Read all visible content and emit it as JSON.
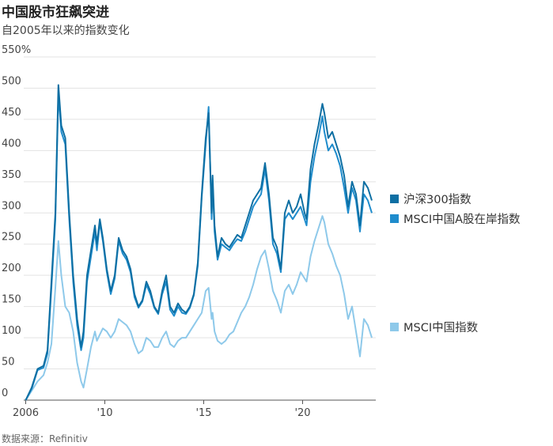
{
  "title": "中国股市狂飙突进",
  "subtitle": "自2005年以来的指数变化",
  "source": "数据来源：Refinitiv",
  "chart_data": {
    "type": "line",
    "title": "中国股市狂飙突进",
    "subtitle": "自2005年以来的指数变化",
    "xlabel": "",
    "ylabel": "",
    "xlim": [
      2005.9,
      2023.7
    ],
    "ylim": [
      0,
      550
    ],
    "y_ticks": [
      0,
      50,
      100,
      150,
      200,
      250,
      300,
      350,
      400,
      450,
      500,
      550
    ],
    "y_tick_labels": [
      "0",
      "50",
      "100",
      "150",
      "200",
      "250",
      "300",
      "350",
      "400",
      "450",
      "500",
      "550%"
    ],
    "x_ticks": [
      2006,
      2010,
      2015,
      2020
    ],
    "x_tick_labels": [
      "2006",
      "'10",
      "'15",
      "'20"
    ],
    "grid": "horizontal",
    "legend": "right",
    "series": [
      {
        "name": "沪深300指数",
        "color": "#0e6fa3",
        "x": [
          2006.0,
          2006.3,
          2006.6,
          2006.9,
          2007.1,
          2007.3,
          2007.5,
          2007.65,
          2007.8,
          2008.0,
          2008.2,
          2008.4,
          2008.6,
          2008.8,
          2008.92,
          2009.1,
          2009.3,
          2009.5,
          2009.6,
          2009.75,
          2009.9,
          2010.1,
          2010.3,
          2010.5,
          2010.7,
          2010.9,
          2011.1,
          2011.3,
          2011.5,
          2011.7,
          2011.9,
          2012.1,
          2012.3,
          2012.5,
          2012.7,
          2012.9,
          2013.1,
          2013.3,
          2013.5,
          2013.7,
          2013.9,
          2014.1,
          2014.3,
          2014.5,
          2014.7,
          2014.9,
          2015.1,
          2015.25,
          2015.4,
          2015.45,
          2015.55,
          2015.7,
          2015.9,
          2016.1,
          2016.3,
          2016.5,
          2016.7,
          2016.9,
          2017.1,
          2017.3,
          2017.5,
          2017.7,
          2017.9,
          2018.1,
          2018.3,
          2018.5,
          2018.7,
          2018.9,
          2019.1,
          2019.3,
          2019.5,
          2019.7,
          2019.9,
          2020.1,
          2020.2,
          2020.4,
          2020.6,
          2020.8,
          2021.0,
          2021.1,
          2021.3,
          2021.5,
          2021.7,
          2021.9,
          2022.1,
          2022.3,
          2022.5,
          2022.7,
          2022.9,
          2023.1,
          2023.3,
          2023.5
        ],
        "y": [
          0,
          20,
          50,
          55,
          80,
          190,
          300,
          505,
          440,
          420,
          300,
          200,
          130,
          85,
          110,
          200,
          240,
          280,
          250,
          290,
          260,
          210,
          175,
          200,
          260,
          240,
          230,
          210,
          170,
          150,
          160,
          190,
          175,
          150,
          140,
          175,
          200,
          150,
          140,
          155,
          145,
          140,
          150,
          170,
          220,
          330,
          420,
          460,
          300,
          360,
          280,
          230,
          260,
          250,
          245,
          255,
          265,
          260,
          280,
          300,
          320,
          330,
          340,
          380,
          330,
          260,
          245,
          210,
          300,
          320,
          300,
          310,
          330,
          300,
          290,
          370,
          410,
          440,
          475,
          460,
          420,
          430,
          410,
          390,
          360,
          310,
          350,
          330,
          280,
          350,
          340,
          320
        ]
      },
      {
        "name": "MSCI中国A股在岸指数",
        "color": "#1f8ccc",
        "x": [
          2006.0,
          2006.3,
          2006.6,
          2006.9,
          2007.1,
          2007.3,
          2007.5,
          2007.65,
          2007.8,
          2008.0,
          2008.2,
          2008.4,
          2008.6,
          2008.8,
          2008.92,
          2009.1,
          2009.3,
          2009.5,
          2009.6,
          2009.75,
          2009.9,
          2010.1,
          2010.3,
          2010.5,
          2010.7,
          2010.9,
          2011.1,
          2011.3,
          2011.5,
          2011.7,
          2011.9,
          2012.1,
          2012.3,
          2012.5,
          2012.7,
          2012.9,
          2013.1,
          2013.3,
          2013.5,
          2013.7,
          2013.9,
          2014.1,
          2014.3,
          2014.5,
          2014.7,
          2014.9,
          2015.1,
          2015.25,
          2015.4,
          2015.45,
          2015.55,
          2015.7,
          2015.9,
          2016.1,
          2016.3,
          2016.5,
          2016.7,
          2016.9,
          2017.1,
          2017.3,
          2017.5,
          2017.7,
          2017.9,
          2018.1,
          2018.3,
          2018.5,
          2018.7,
          2018.9,
          2019.1,
          2019.3,
          2019.5,
          2019.7,
          2019.9,
          2020.1,
          2020.2,
          2020.4,
          2020.6,
          2020.8,
          2021.0,
          2021.1,
          2021.3,
          2021.5,
          2021.7,
          2021.9,
          2022.1,
          2022.3,
          2022.5,
          2022.7,
          2022.9,
          2023.1,
          2023.3,
          2023.5
        ],
        "y": [
          0,
          18,
          48,
          52,
          75,
          180,
          290,
          490,
          430,
          410,
          290,
          190,
          120,
          80,
          100,
          190,
          230,
          270,
          240,
          285,
          255,
          205,
          170,
          195,
          255,
          235,
          225,
          205,
          165,
          148,
          158,
          185,
          170,
          148,
          138,
          170,
          190,
          145,
          135,
          150,
          140,
          138,
          148,
          168,
          215,
          325,
          410,
          470,
          290,
          350,
          270,
          225,
          250,
          245,
          240,
          250,
          258,
          255,
          270,
          290,
          310,
          320,
          330,
          370,
          320,
          250,
          235,
          205,
          290,
          300,
          290,
          300,
          310,
          290,
          280,
          350,
          390,
          420,
          455,
          430,
          400,
          410,
          395,
          375,
          340,
          300,
          340,
          320,
          270,
          330,
          320,
          300
        ]
      },
      {
        "name": "MSCI中国指数",
        "color": "#8ec9ea",
        "x": [
          2006.0,
          2006.3,
          2006.6,
          2006.9,
          2007.1,
          2007.3,
          2007.5,
          2007.65,
          2007.8,
          2008.0,
          2008.2,
          2008.4,
          2008.6,
          2008.8,
          2008.92,
          2009.1,
          2009.3,
          2009.5,
          2009.6,
          2009.75,
          2009.9,
          2010.1,
          2010.3,
          2010.5,
          2010.7,
          2010.9,
          2011.1,
          2011.3,
          2011.5,
          2011.7,
          2011.9,
          2012.1,
          2012.3,
          2012.5,
          2012.7,
          2012.9,
          2013.1,
          2013.3,
          2013.5,
          2013.7,
          2013.9,
          2014.1,
          2014.3,
          2014.5,
          2014.7,
          2014.9,
          2015.1,
          2015.25,
          2015.4,
          2015.45,
          2015.55,
          2015.7,
          2015.9,
          2016.1,
          2016.3,
          2016.5,
          2016.7,
          2016.9,
          2017.1,
          2017.3,
          2017.5,
          2017.7,
          2017.9,
          2018.1,
          2018.3,
          2018.5,
          2018.7,
          2018.9,
          2019.1,
          2019.3,
          2019.5,
          2019.7,
          2019.9,
          2020.1,
          2020.2,
          2020.4,
          2020.6,
          2020.8,
          2021.0,
          2021.1,
          2021.3,
          2021.5,
          2021.7,
          2021.9,
          2022.1,
          2022.3,
          2022.5,
          2022.7,
          2022.9,
          2023.1,
          2023.3,
          2023.5
        ],
        "y": [
          0,
          15,
          30,
          40,
          60,
          90,
          180,
          255,
          200,
          150,
          140,
          110,
          60,
          30,
          20,
          50,
          85,
          110,
          95,
          105,
          115,
          110,
          100,
          110,
          130,
          125,
          120,
          110,
          90,
          75,
          80,
          100,
          95,
          85,
          85,
          100,
          110,
          90,
          85,
          95,
          100,
          100,
          110,
          120,
          130,
          140,
          175,
          180,
          130,
          140,
          110,
          95,
          90,
          95,
          105,
          110,
          125,
          140,
          150,
          165,
          185,
          210,
          230,
          240,
          210,
          175,
          160,
          140,
          175,
          185,
          170,
          185,
          205,
          195,
          190,
          230,
          255,
          275,
          295,
          285,
          250,
          235,
          215,
          200,
          170,
          130,
          150,
          110,
          70,
          130,
          120,
          100
        ]
      }
    ]
  }
}
